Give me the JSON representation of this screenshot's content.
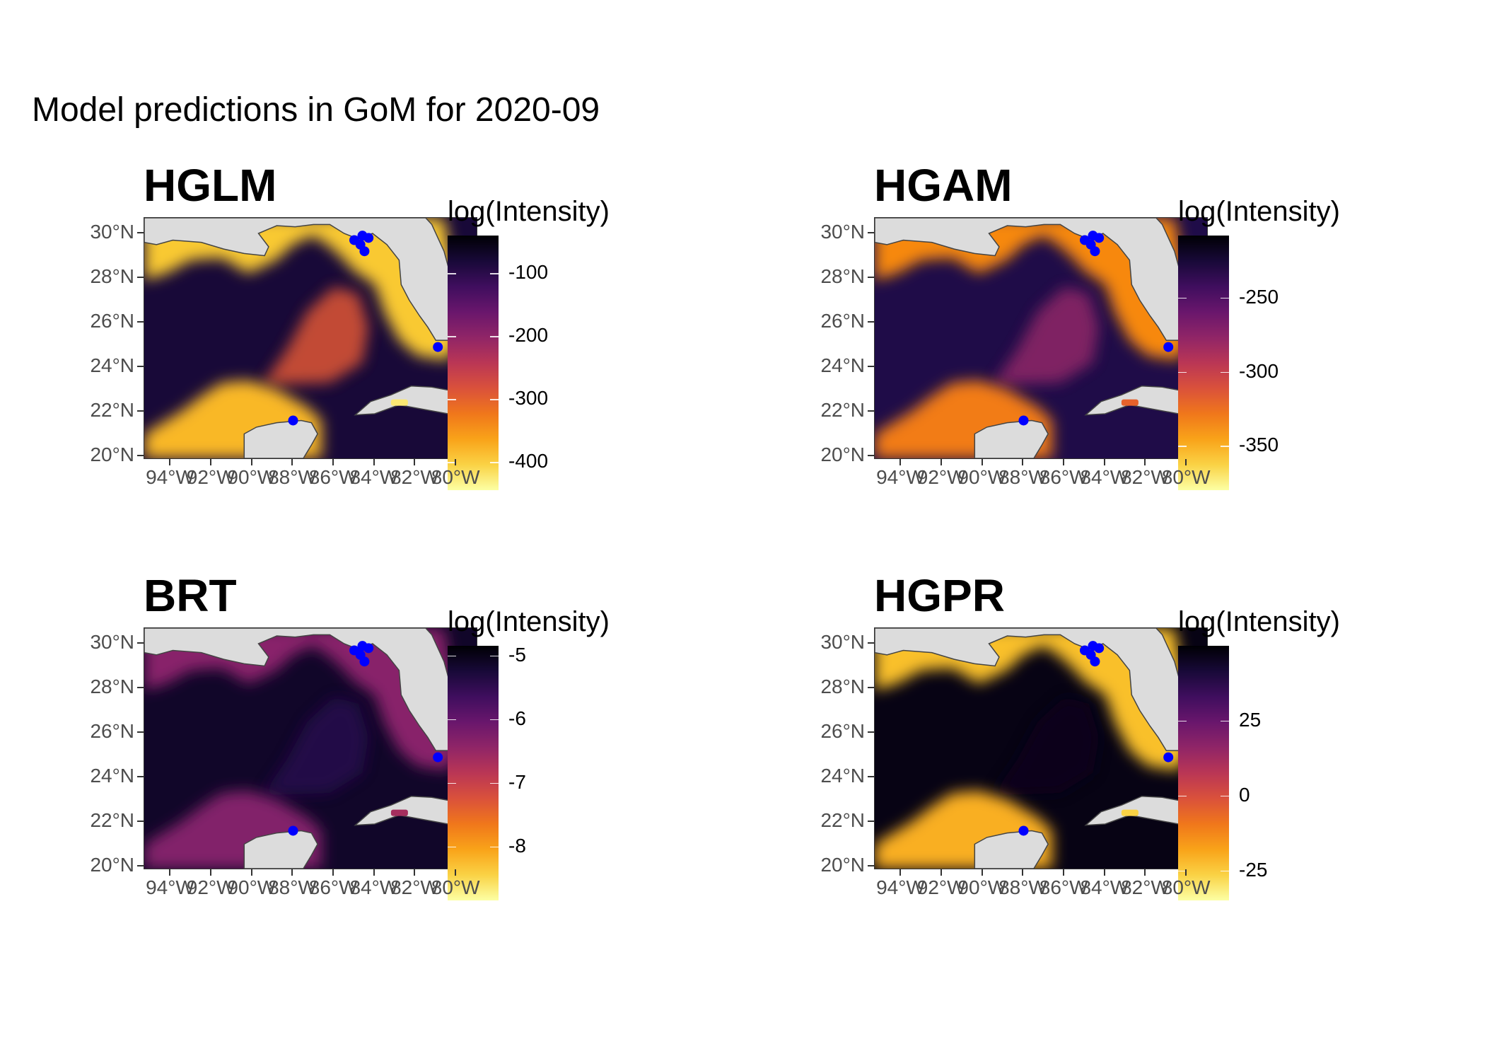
{
  "figure_title": "Model predictions in GoM for 2020-09",
  "axes": {
    "y_ticks": [
      "30°N",
      "28°N",
      "26°N",
      "24°N",
      "22°N",
      "20°N"
    ],
    "y_values": [
      30,
      28,
      26,
      24,
      22,
      20
    ],
    "x_ticks": [
      "94°W",
      "92°W",
      "90°W",
      "88°W",
      "86°W",
      "84°W",
      "82°W",
      "80°W"
    ],
    "x_values": [
      -94,
      -92,
      -90,
      -88,
      -86,
      -84,
      -82,
      -80
    ],
    "xlim": [
      -95.3,
      -79.0
    ],
    "ylim": [
      19.9,
      30.7
    ]
  },
  "colormap": "inferno",
  "point_color": "#0000ff",
  "observation_points": [
    {
      "lon": -85.0,
      "lat": 29.7
    },
    {
      "lon": -84.7,
      "lat": 29.5
    },
    {
      "lon": -84.5,
      "lat": 29.2
    },
    {
      "lon": -84.3,
      "lat": 29.8
    },
    {
      "lon": -84.6,
      "lat": 29.9
    },
    {
      "lon": -80.9,
      "lat": 24.9
    },
    {
      "lon": -88.0,
      "lat": 21.6
    }
  ],
  "panels": [
    {
      "id": "hglm",
      "title": "HGLM",
      "legend_title": "log(Intensity)",
      "legend_ticks": [
        "-100",
        "-200",
        "-300",
        "-400"
      ],
      "legend_values": [
        -100,
        -200,
        -300,
        -400
      ],
      "legend_range": [
        -445,
        -40
      ],
      "style": {
        "shelf": 0.88,
        "loop": 0.62,
        "basin": 0.1,
        "cuba": 0.95
      }
    },
    {
      "id": "hgam",
      "title": "HGAM",
      "legend_title": "log(Intensity)",
      "legend_ticks": [
        "-250",
        "-300",
        "-350"
      ],
      "legend_values": [
        -250,
        -300,
        -350
      ],
      "legend_range": [
        -380,
        -208
      ],
      "style": {
        "shelf": 0.74,
        "loop": 0.4,
        "basin": 0.13,
        "cuba": 0.65
      }
    },
    {
      "id": "brt",
      "title": "BRT",
      "legend_title": "log(Intensity)",
      "legend_ticks": [
        "-5",
        "-6",
        "-7",
        "-8"
      ],
      "legend_values": [
        -5,
        -6,
        -7,
        -8
      ],
      "legend_range": [
        -8.85,
        -4.85
      ],
      "style": {
        "shelf": 0.38,
        "loop": 0.15,
        "basin": 0.07,
        "cuba": 0.45
      }
    },
    {
      "id": "hgpr",
      "title": "HGPR",
      "legend_title": "log(Intensity)",
      "legend_ticks": [
        "25",
        "0",
        "-25"
      ],
      "legend_values": [
        25,
        0,
        -25
      ],
      "legend_range": [
        -35,
        50
      ],
      "style": {
        "shelf": 0.86,
        "loop": 0.05,
        "basin": 0.03,
        "cuba": 0.9
      }
    }
  ]
}
